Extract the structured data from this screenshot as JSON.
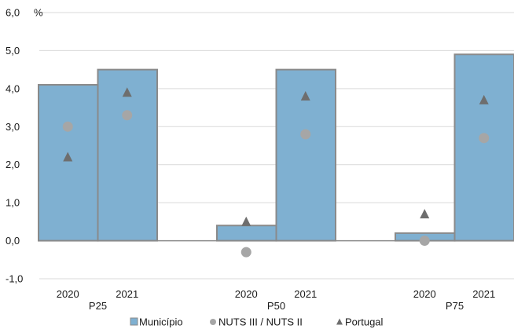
{
  "chart_data": {
    "type": "bar",
    "unit_label": "%",
    "ylim": [
      -1.0,
      6.0
    ],
    "y_ticks": [
      "-1,0",
      "0,0",
      "1,0",
      "2,0",
      "3,0",
      "4,0",
      "5,0",
      "6,0"
    ],
    "y_tick_values": [
      -1,
      0,
      1,
      2,
      3,
      4,
      5,
      6
    ],
    "grid": true,
    "legend_position": "bottom",
    "colors": {
      "bar_fill": "#7fb0d1",
      "bar_stroke": "#8a8a8a",
      "circle": "#a6a6a6",
      "triangle": "#6e6e6e",
      "grid": "#d9d9d9"
    },
    "groups": [
      {
        "label": "P25",
        "categories": [
          "2020",
          "2021"
        ],
        "municipio": [
          4.1,
          4.5
        ],
        "nuts": [
          3.0,
          3.3
        ],
        "portugal": [
          2.2,
          3.9
        ]
      },
      {
        "label": "P50",
        "categories": [
          "2020",
          "2021"
        ],
        "municipio": [
          0.4,
          4.5
        ],
        "nuts": [
          -0.3,
          2.8
        ],
        "portugal": [
          0.5,
          3.8
        ]
      },
      {
        "label": "P75",
        "categories": [
          "2020",
          "2021"
        ],
        "municipio": [
          0.2,
          4.9
        ],
        "nuts": [
          0.0,
          2.7
        ],
        "portugal": [
          0.7,
          3.7
        ]
      }
    ],
    "series": [
      {
        "name": "Município",
        "marker": "bar"
      },
      {
        "name": "NUTS III / NUTS II",
        "marker": "circle"
      },
      {
        "name": "Portugal",
        "marker": "triangle"
      }
    ]
  }
}
